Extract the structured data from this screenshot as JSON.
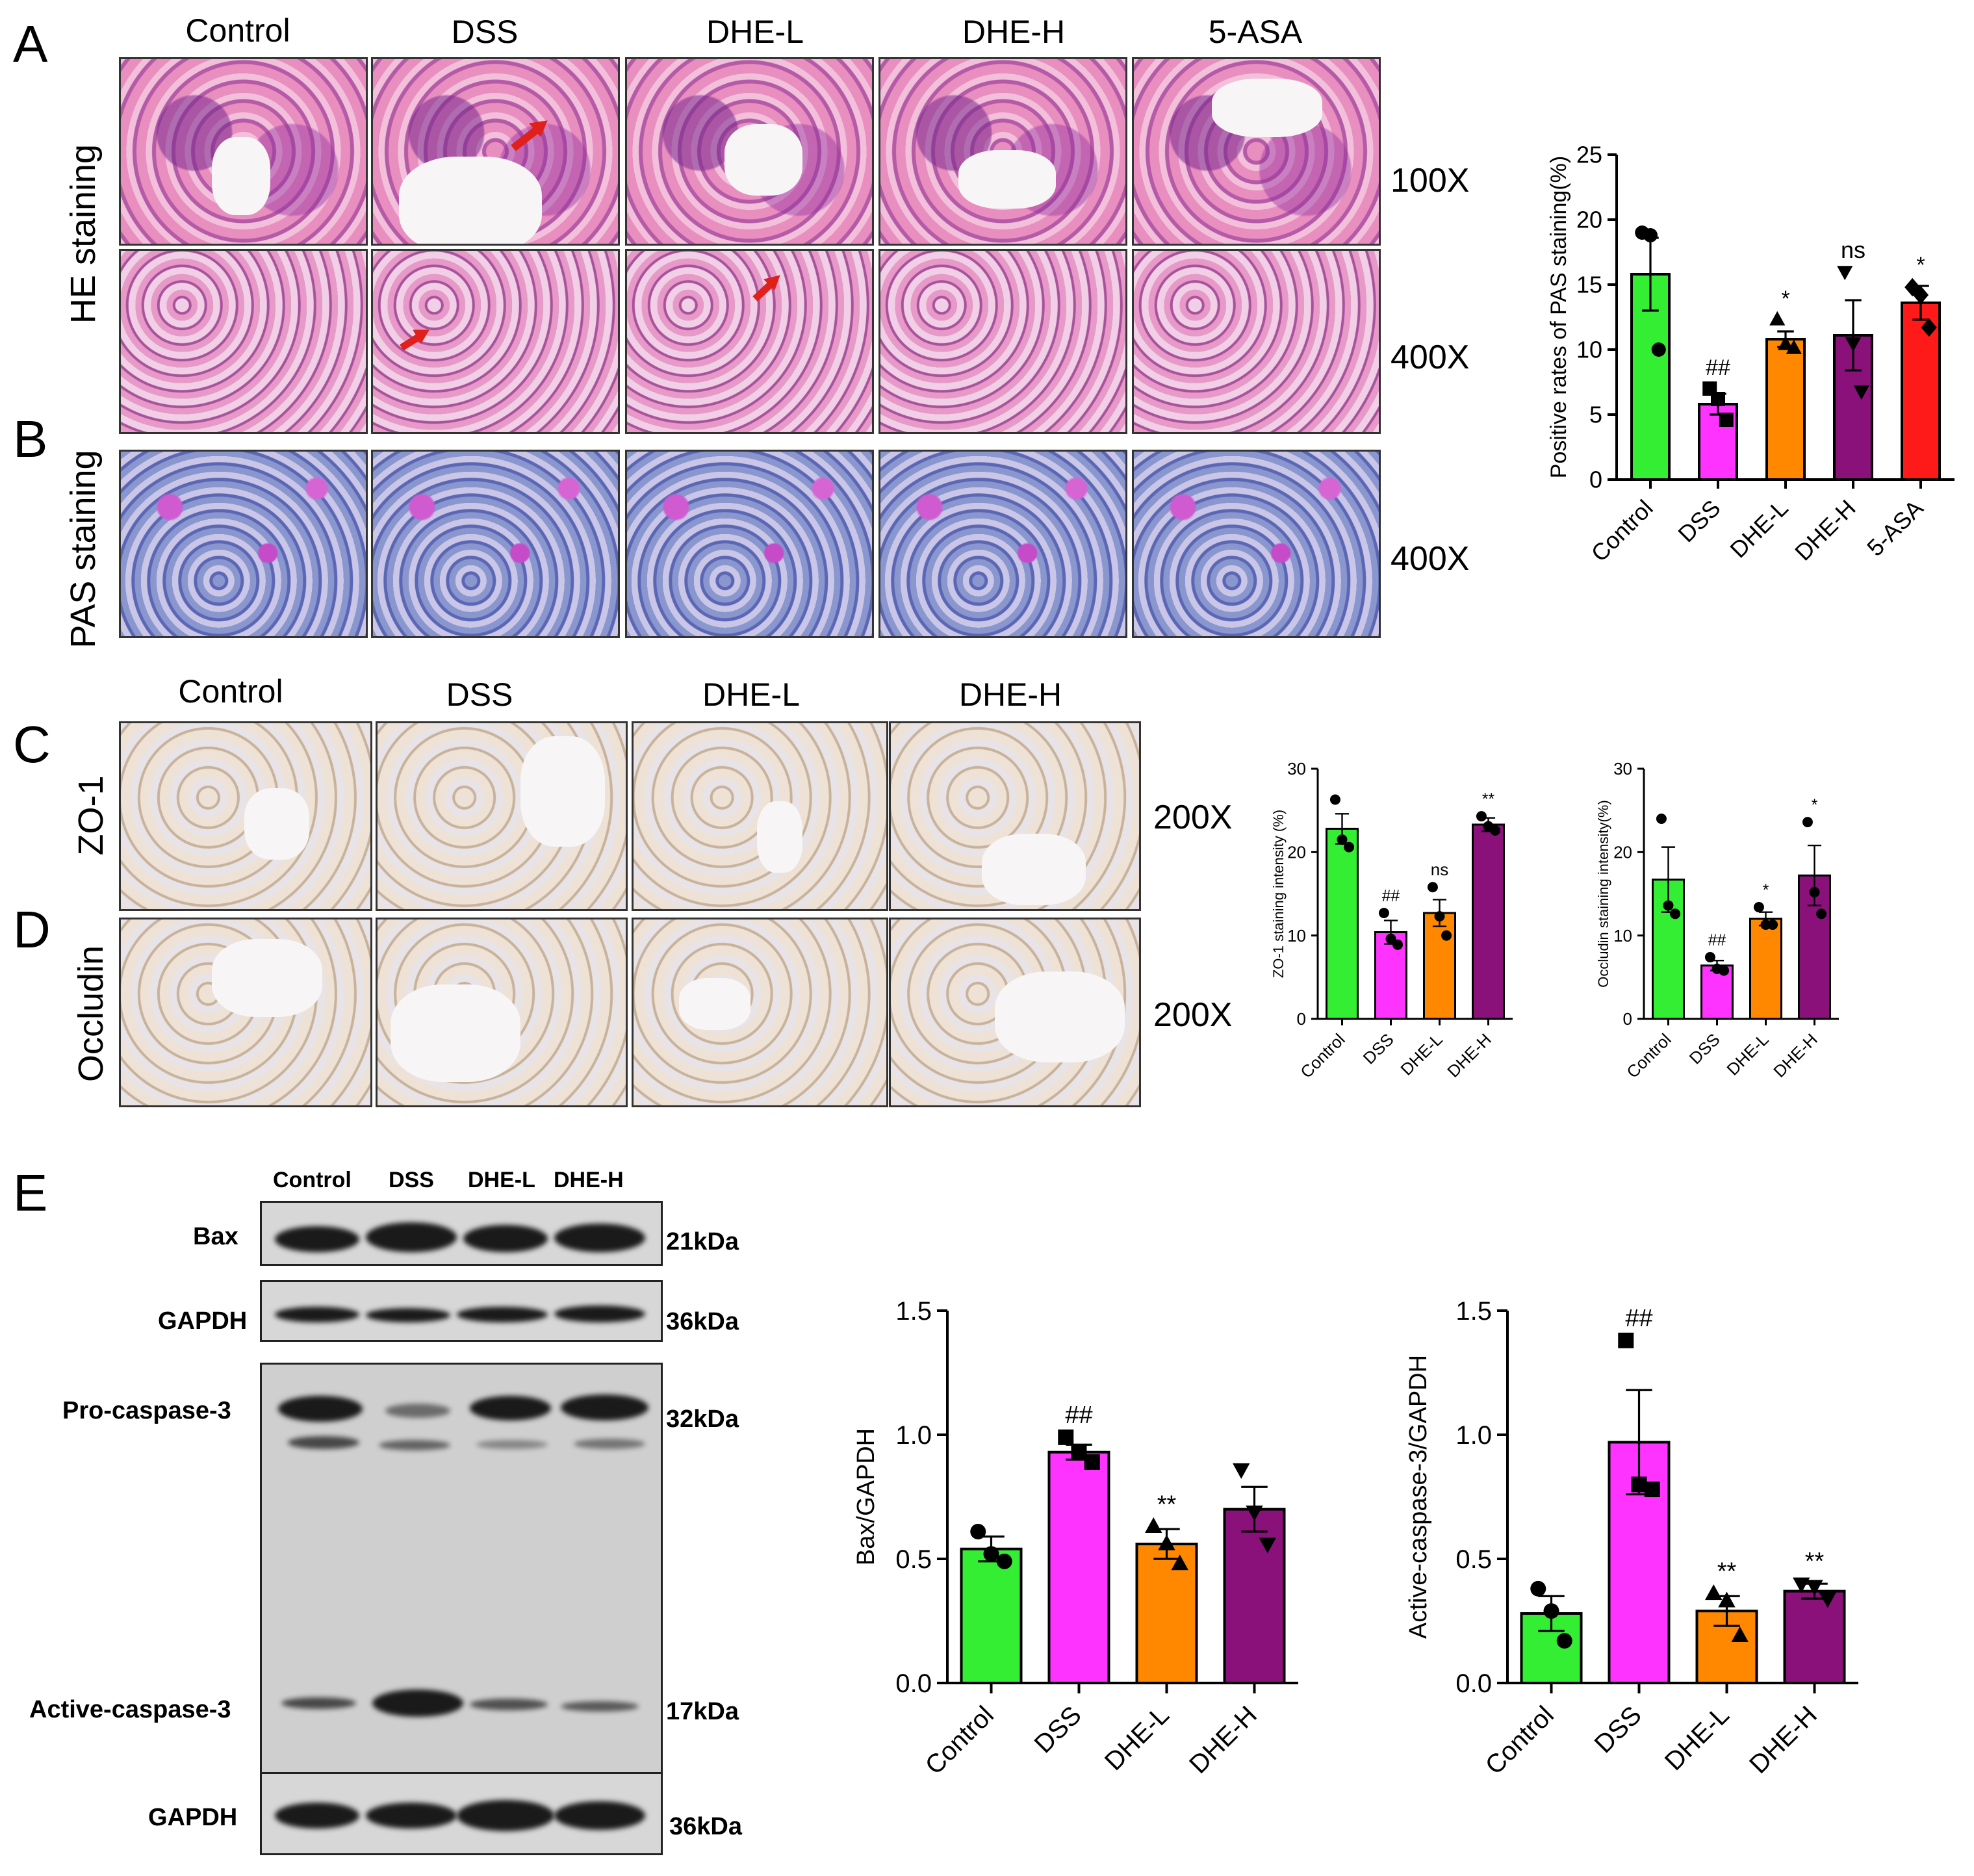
{
  "panels": {
    "A": {
      "letter": "A"
    },
    "B": {
      "letter": "B"
    },
    "C": {
      "letter": "C"
    },
    "D": {
      "letter": "D"
    },
    "E": {
      "letter": "E"
    }
  },
  "section1": {
    "groups": [
      "Control",
      "DSS",
      "DHE-L",
      "DHE-H",
      "5-ASA"
    ],
    "row_he": "HE staining",
    "row_pas": "PAS staining",
    "mag_100": "100X",
    "mag_400a": "400X",
    "mag_400b": "400X"
  },
  "section2": {
    "groups": [
      "Control",
      "DSS",
      "DHE-L",
      "DHE-H"
    ],
    "row_zo1": "ZO-1",
    "row_occ": "Occludin",
    "mag_a": "200X",
    "mag_b": "200X"
  },
  "blot": {
    "lanes": [
      "Control",
      "DSS",
      "DHE-L",
      "DHE-H"
    ],
    "bax": "Bax",
    "bax_kda": "21kDa",
    "gapdh1": "GAPDH",
    "gapdh1_kda": "36kDa",
    "pro": "Pro-caspase-3",
    "pro_kda": "32kDa",
    "active": "Active-caspase-3",
    "active_kda": "17kDa",
    "gapdh2": "GAPDH",
    "gapdh2_kda": "36kDa"
  },
  "colors": {
    "Control": "#33ee33",
    "DSS": "#ff33ff",
    "DHE-L": "#ff8800",
    "DHE-H": "#8a117a",
    "5-ASA": "#ff1a1a"
  },
  "chart_data": [
    {
      "id": "pas",
      "type": "bar",
      "categories": [
        "Control",
        "DSS",
        "DHE-L",
        "DHE-H",
        "5-ASA"
      ],
      "values": [
        15.8,
        5.8,
        10.8,
        11.1,
        13.6
      ],
      "errors": [
        2.8,
        0.8,
        0.6,
        2.7,
        1.3
      ],
      "points": [
        [
          19,
          18.8,
          10
        ],
        [
          7,
          6.2,
          4.6
        ],
        [
          12.3,
          10.4,
          10.1
        ],
        [
          16,
          10.5,
          6.8
        ],
        [
          14.8,
          14.2,
          11.7
        ]
      ],
      "markers": [
        "circle",
        "square",
        "triangle",
        "triangle-down",
        "diamond"
      ],
      "annotations": [
        "",
        "##",
        "*",
        "ns",
        "*"
      ],
      "ylabel": "Positive rates of PAS staining(%)",
      "ylim": [
        0,
        25
      ],
      "yticks": [
        0,
        5,
        10,
        15,
        20,
        25
      ]
    },
    {
      "id": "zo1",
      "type": "bar",
      "categories": [
        "Control",
        "DSS",
        "DHE-L",
        "DHE-H"
      ],
      "values": [
        22.8,
        10.4,
        12.7,
        23.3
      ],
      "errors": [
        1.8,
        1.4,
        1.6,
        0.8
      ],
      "points": [
        [
          26.3,
          21.5,
          20.6
        ],
        [
          12.7,
          9.6,
          8.9
        ],
        [
          15.8,
          12.3,
          10.0
        ],
        [
          24.3,
          23.1,
          22.6
        ]
      ],
      "markers": [
        "circle",
        "circle",
        "circle",
        "circle"
      ],
      "annotations": [
        "",
        "##",
        "ns",
        "**"
      ],
      "ylabel": "ZO-1 staining intensity (%)",
      "ylim": [
        0,
        30
      ],
      "yticks": [
        0,
        10,
        20,
        30
      ]
    },
    {
      "id": "occludin",
      "type": "bar",
      "categories": [
        "Control",
        "DSS",
        "DHE-L",
        "DHE-H"
      ],
      "values": [
        16.7,
        6.4,
        12.0,
        17.2
      ],
      "errors": [
        3.9,
        0.6,
        0.8,
        3.6
      ],
      "points": [
        [
          24.0,
          13.6,
          12.6
        ],
        [
          7.4,
          6.0,
          5.8
        ],
        [
          13.4,
          11.3,
          11.3
        ],
        [
          23.6,
          15.2,
          12.6
        ]
      ],
      "markers": [
        "circle",
        "circle",
        "circle",
        "circle"
      ],
      "annotations": [
        "",
        "##",
        "*",
        "*"
      ],
      "ylabel": "Occludin staining intensity(%)",
      "ylim": [
        0,
        30
      ],
      "yticks": [
        0,
        10,
        20,
        30
      ]
    },
    {
      "id": "bax",
      "type": "bar",
      "categories": [
        "Control",
        "DSS",
        "DHE-L",
        "DHE-H"
      ],
      "values": [
        0.54,
        0.93,
        0.56,
        0.7
      ],
      "errors": [
        0.05,
        0.03,
        0.06,
        0.09
      ],
      "points": [
        [
          0.61,
          0.52,
          0.49
        ],
        [
          0.99,
          0.93,
          0.89
        ],
        [
          0.63,
          0.56,
          0.48
        ],
        [
          0.86,
          0.69,
          0.56
        ]
      ],
      "markers": [
        "circle",
        "square",
        "triangle",
        "triangle-down"
      ],
      "annotations": [
        "",
        "##",
        "**",
        ""
      ],
      "ylabel": "Bax/GAPDH",
      "ylim": [
        0,
        1.5
      ],
      "yticks": [
        0.0,
        0.5,
        1.0,
        1.5
      ]
    },
    {
      "id": "caspase",
      "type": "bar",
      "categories": [
        "Control",
        "DSS",
        "DHE-L",
        "DHE-H"
      ],
      "values": [
        0.28,
        0.97,
        0.29,
        0.37
      ],
      "errors": [
        0.07,
        0.21,
        0.06,
        0.03
      ],
      "points": [
        [
          0.38,
          0.29,
          0.17
        ],
        [
          1.38,
          0.8,
          0.78
        ],
        [
          0.36,
          0.33,
          0.19
        ],
        [
          0.4,
          0.39,
          0.34
        ]
      ],
      "markers": [
        "circle",
        "square",
        "triangle",
        "triangle-down"
      ],
      "annotations": [
        "",
        "##",
        "**",
        "**"
      ],
      "ylabel": "Active-caspase-3/GAPDH",
      "ylim": [
        0,
        1.5
      ],
      "yticks": [
        0.0,
        0.5,
        1.0,
        1.5
      ]
    }
  ]
}
